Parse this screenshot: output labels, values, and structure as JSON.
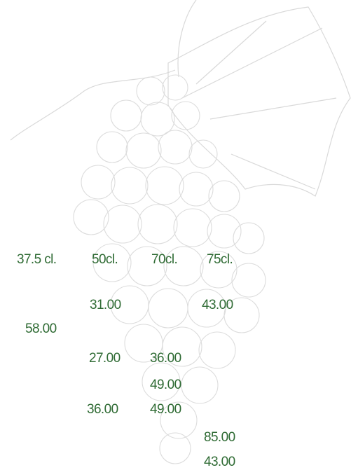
{
  "sizes": [
    "37.5 cl.",
    "50cl.",
    "70cl.",
    "75cl."
  ],
  "prices": [
    "31.00",
    "43.00",
    "58.00",
    "27.00",
    "36.00",
    "49.00",
    "36.00",
    "49.00",
    "85.00",
    "43.00"
  ]
}
